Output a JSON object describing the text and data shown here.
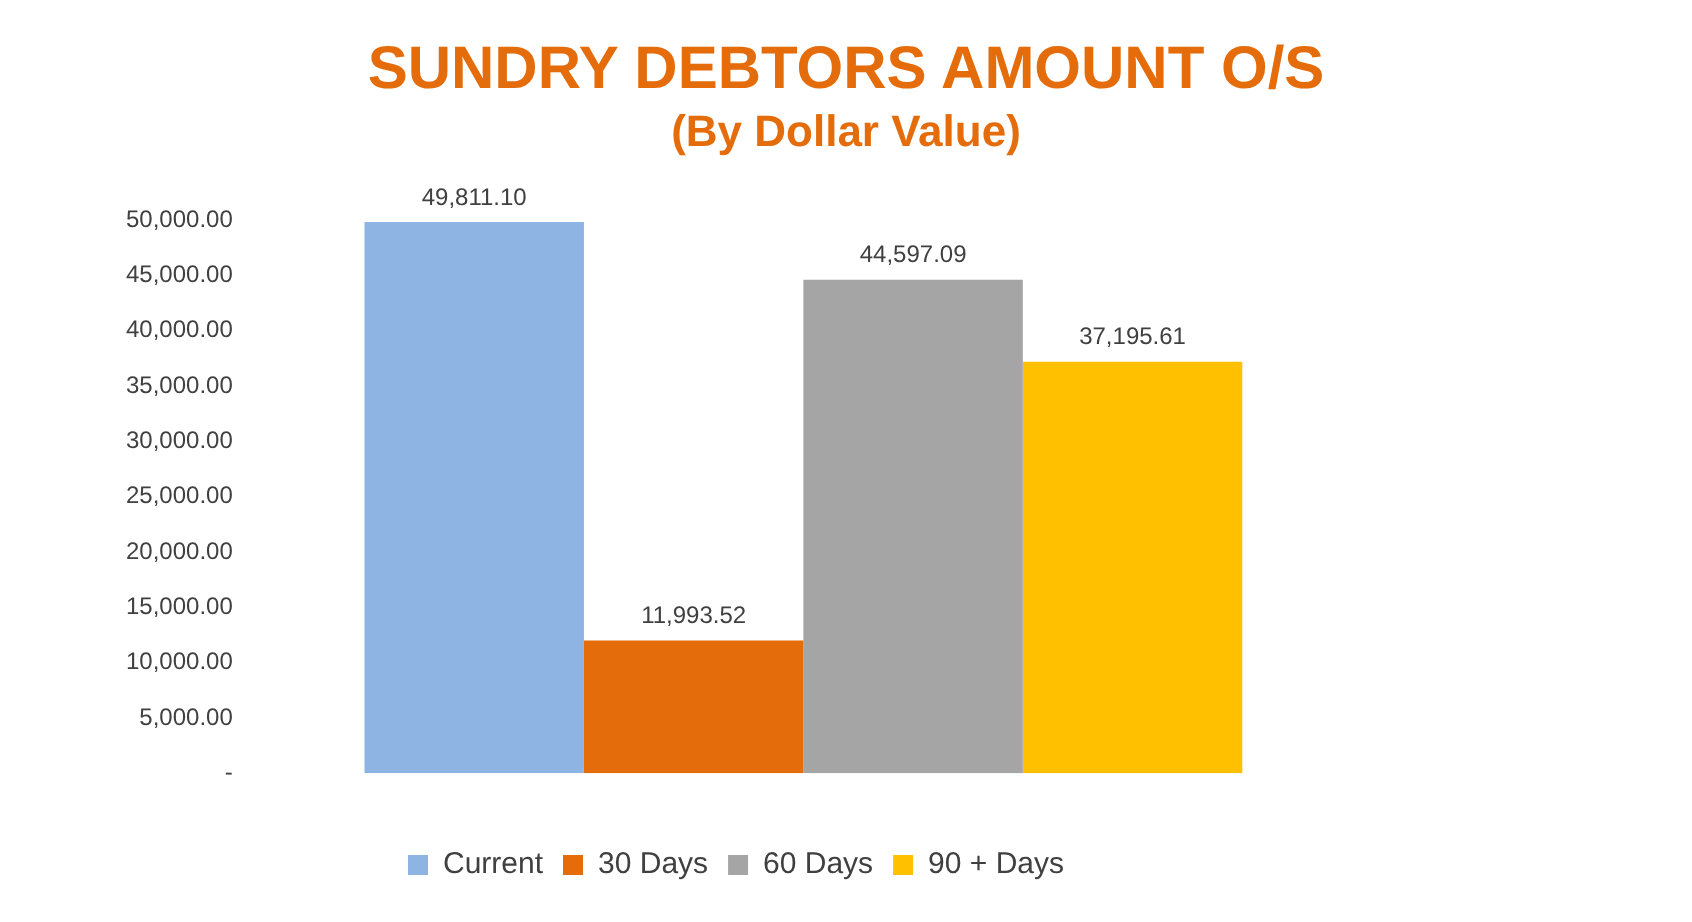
{
  "chart_data": {
    "type": "bar",
    "title": "SUNDRY DEBTORS AMOUNT O/S",
    "subtitle": "(By Dollar Value)",
    "categories": [
      null
    ],
    "series": [
      {
        "name": "Current",
        "color": "#8db4e2",
        "values": [
          49811.1
        ],
        "value_labels": [
          "49,811.10"
        ]
      },
      {
        "name": "30 Days",
        "color": "#e46c0a",
        "values": [
          11993.52
        ],
        "value_labels": [
          "11,993.52"
        ]
      },
      {
        "name": "60 Days",
        "color": "#a5a5a5",
        "values": [
          44597.09
        ],
        "value_labels": [
          "44,597.09"
        ]
      },
      {
        "name": "90 + Days",
        "color": "#ffc000",
        "values": [
          37195.61
        ],
        "value_labels": [
          "37,195.61"
        ]
      }
    ],
    "ylim": [
      0,
      50000
    ],
    "yticks": [
      {
        "value": 0,
        "label": "-"
      },
      {
        "value": 5000,
        "label": "5,000.00"
      },
      {
        "value": 10000,
        "label": "10,000.00"
      },
      {
        "value": 15000,
        "label": "15,000.00"
      },
      {
        "value": 20000,
        "label": "20,000.00"
      },
      {
        "value": 25000,
        "label": "25,000.00"
      },
      {
        "value": 30000,
        "label": "30,000.00"
      },
      {
        "value": 35000,
        "label": "35,000.00"
      },
      {
        "value": 40000,
        "label": "40,000.00"
      },
      {
        "value": 45000,
        "label": "45,000.00"
      },
      {
        "value": 50000,
        "label": "50,000.00"
      }
    ],
    "grid": false,
    "legend": "bottom"
  }
}
